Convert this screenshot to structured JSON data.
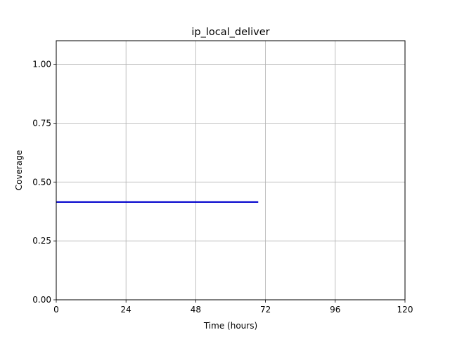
{
  "chart_data": {
    "type": "line",
    "title": "ip_local_deliver",
    "xlabel": "Time (hours)",
    "ylabel": "Coverage",
    "xlim": [
      0,
      120
    ],
    "ylim": [
      0,
      1.1
    ],
    "xticks": [
      0,
      24,
      48,
      72,
      96,
      120
    ],
    "xtick_labels": [
      "0",
      "24",
      "48",
      "72",
      "96",
      "120"
    ],
    "yticks": [
      0,
      0.25,
      0.5,
      0.75,
      1.0
    ],
    "ytick_labels": [
      "0.00",
      "0.25",
      "0.50",
      "0.75",
      "1.00"
    ],
    "grid": true,
    "legend": "none",
    "series": [
      {
        "color": "#0000cc",
        "x": [
          0,
          69.5
        ],
        "y": [
          0.415,
          0.415
        ]
      }
    ]
  }
}
